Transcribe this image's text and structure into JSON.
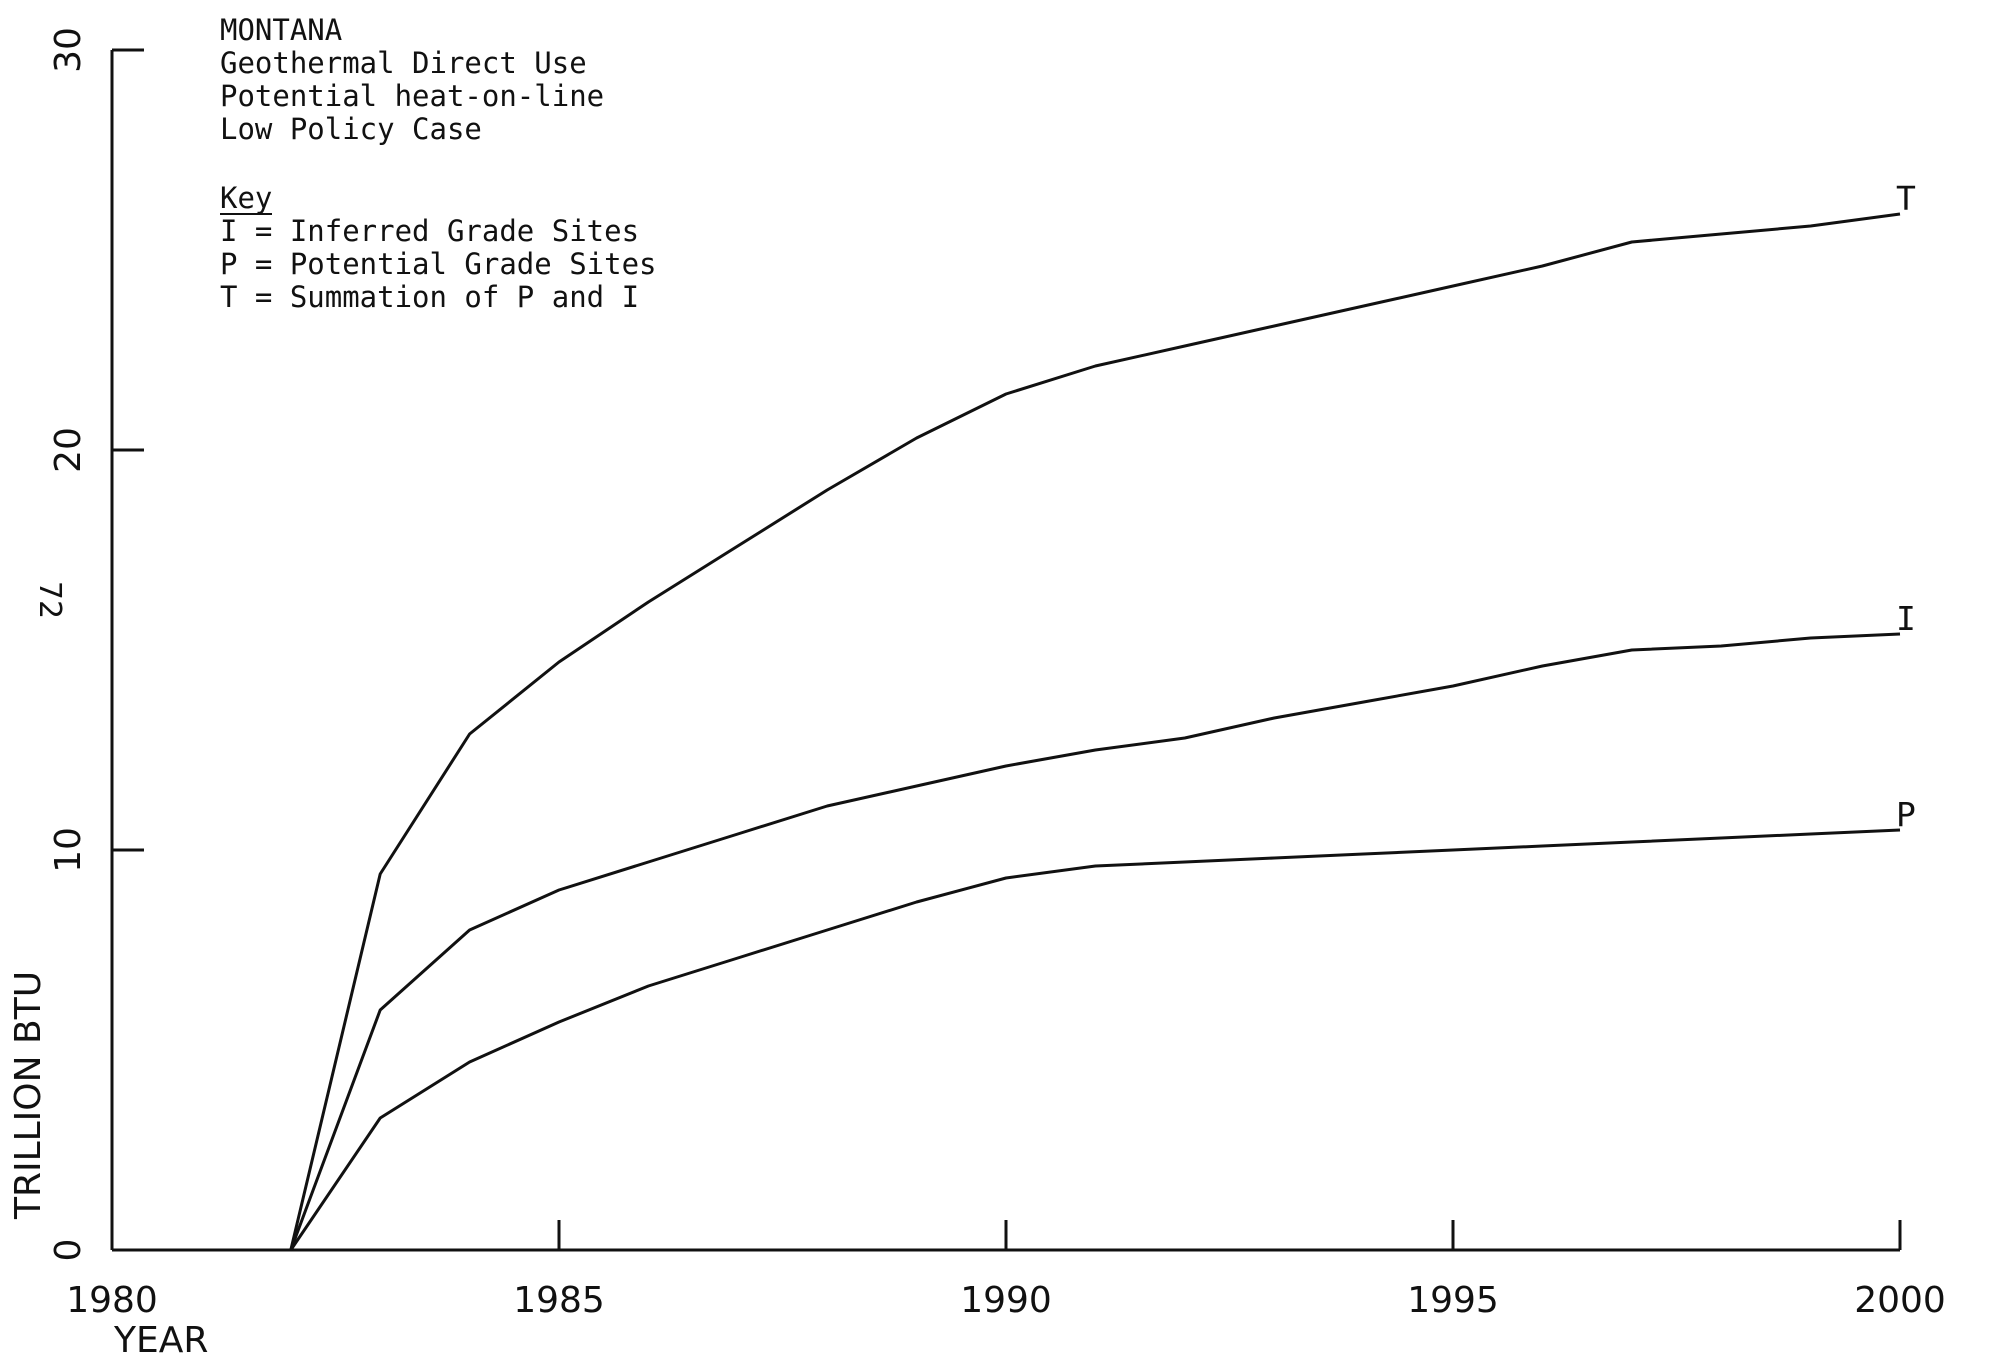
{
  "page_number": "72",
  "chart_data": {
    "type": "line",
    "title_lines": [
      "MONTANA",
      "Geothermal Direct Use",
      "Potential heat-on-line",
      "Low Policy Case"
    ],
    "legend": {
      "heading": "Key",
      "entries": [
        "I = Inferred Grade Sites",
        "P = Potential Grade Sites",
        "T = Summation of P and I"
      ],
      "position": "top-left"
    },
    "xlabel": "YEAR",
    "ylabel": "TRILLION BTU",
    "xlim": [
      1980,
      2000
    ],
    "ylim": [
      0,
      30
    ],
    "x_ticks": [
      1980,
      1985,
      1990,
      1995,
      2000
    ],
    "x_tick_labels": [
      "1980",
      "1985",
      "1990",
      "1995",
      "2000"
    ],
    "y_ticks": [
      0,
      10,
      20,
      30
    ],
    "y_tick_labels": [
      "0",
      "10",
      "20",
      "30"
    ],
    "grid": false,
    "series": [
      {
        "name": "T",
        "x": [
          1980,
          1981,
          1982,
          1983,
          1984,
          1985,
          1986,
          1987,
          1988,
          1989,
          1990,
          1991,
          1992,
          1993,
          1994,
          1995,
          1996,
          1997,
          1998,
          1999,
          2000
        ],
        "y": [
          0,
          0,
          0,
          9.4,
          12.9,
          14.7,
          16.2,
          17.6,
          19.0,
          20.3,
          21.4,
          22.1,
          22.6,
          23.1,
          23.6,
          24.1,
          24.6,
          25.2,
          25.4,
          25.6,
          25.9
        ]
      },
      {
        "name": "I",
        "x": [
          1980,
          1981,
          1982,
          1983,
          1984,
          1985,
          1986,
          1987,
          1988,
          1989,
          1990,
          1991,
          1992,
          1993,
          1994,
          1995,
          1996,
          1997,
          1998,
          1999,
          2000
        ],
        "y": [
          0,
          0,
          0,
          6.0,
          8.0,
          9.0,
          9.7,
          10.4,
          11.1,
          11.6,
          12.1,
          12.5,
          12.8,
          13.3,
          13.7,
          14.1,
          14.6,
          15.0,
          15.1,
          15.3,
          15.4
        ]
      },
      {
        "name": "P",
        "x": [
          1980,
          1981,
          1982,
          1983,
          1984,
          1985,
          1986,
          1987,
          1988,
          1989,
          1990,
          1991,
          1992,
          1993,
          1994,
          1995,
          1996,
          1997,
          1998,
          1999,
          2000
        ],
        "y": [
          0,
          0,
          0,
          3.3,
          4.7,
          5.7,
          6.6,
          7.3,
          8.0,
          8.7,
          9.3,
          9.6,
          9.7,
          9.8,
          9.9,
          10.0,
          10.1,
          10.2,
          10.3,
          10.4,
          10.5
        ]
      }
    ]
  }
}
